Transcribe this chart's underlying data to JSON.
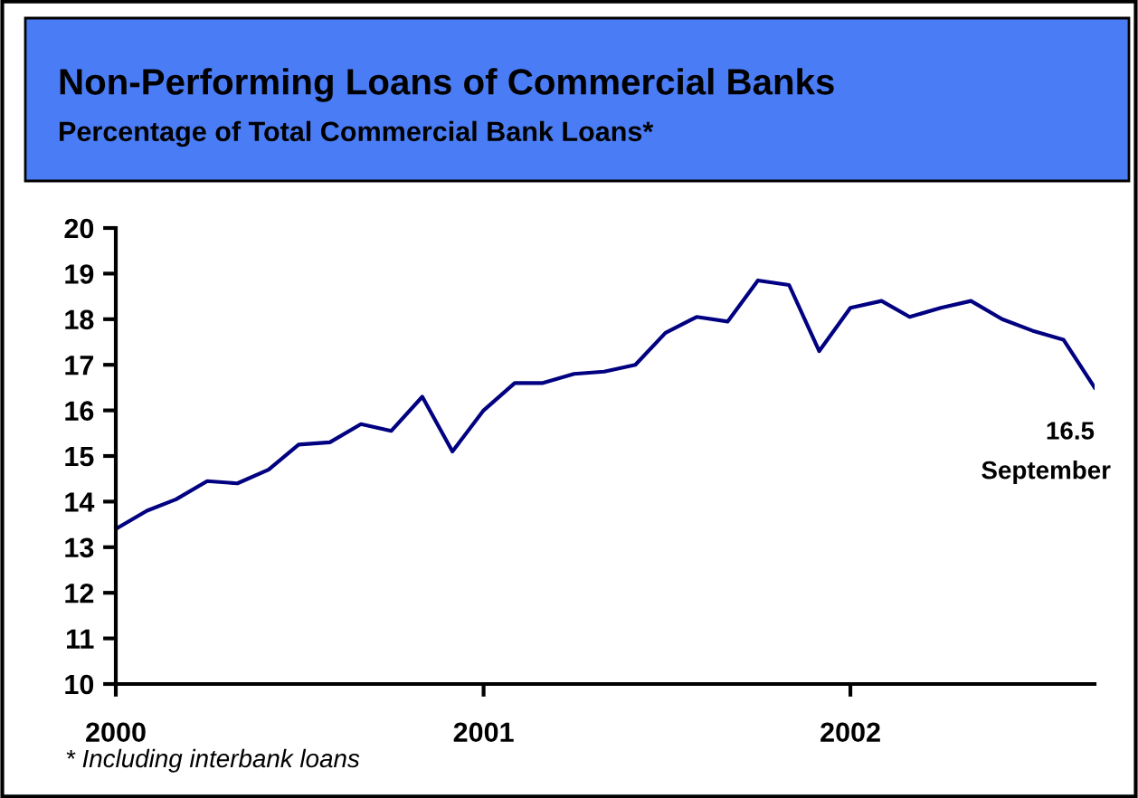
{
  "chart_data": {
    "type": "line",
    "title": "Non-Performing Loans of Commercial Banks",
    "subtitle": "Percentage of Total Commercial Bank Loans*",
    "x": [
      "2000-01",
      "2000-02",
      "2000-03",
      "2000-04",
      "2000-05",
      "2000-06",
      "2000-07",
      "2000-08",
      "2000-09",
      "2000-10",
      "2000-11",
      "2000-12",
      "2001-01",
      "2001-02",
      "2001-03",
      "2001-04",
      "2001-05",
      "2001-06",
      "2001-07",
      "2001-08",
      "2001-09",
      "2001-10",
      "2001-11",
      "2001-12",
      "2002-01",
      "2002-02",
      "2002-03",
      "2002-04",
      "2002-05",
      "2002-06",
      "2002-07",
      "2002-08",
      "2002-09"
    ],
    "series": [
      {
        "color": "#000080",
        "values": [
          13.4,
          13.8,
          14.05,
          14.45,
          14.4,
          14.7,
          15.25,
          15.3,
          15.7,
          15.55,
          16.3,
          15.1,
          16.0,
          16.6,
          16.6,
          16.8,
          16.85,
          17.0,
          17.7,
          18.05,
          17.95,
          18.85,
          18.75,
          17.3,
          18.25,
          18.4,
          18.05,
          18.25,
          18.4,
          18.0,
          17.75,
          17.55,
          16.5
        ]
      }
    ],
    "ylim": [
      10,
      20
    ],
    "yticks": [
      10,
      11,
      12,
      13,
      14,
      15,
      16,
      17,
      18,
      19,
      20
    ],
    "xlim": [
      "2000-01",
      "2002-09"
    ],
    "xticks": [
      "2000",
      "2001",
      "2002"
    ],
    "grid": false,
    "legend": false,
    "marker": "none",
    "line_style": "solid",
    "annotations": [
      {
        "text": "16.5",
        "x": "2002-09",
        "y": 16.5
      },
      "September",
      "* Including interbank loans"
    ]
  }
}
